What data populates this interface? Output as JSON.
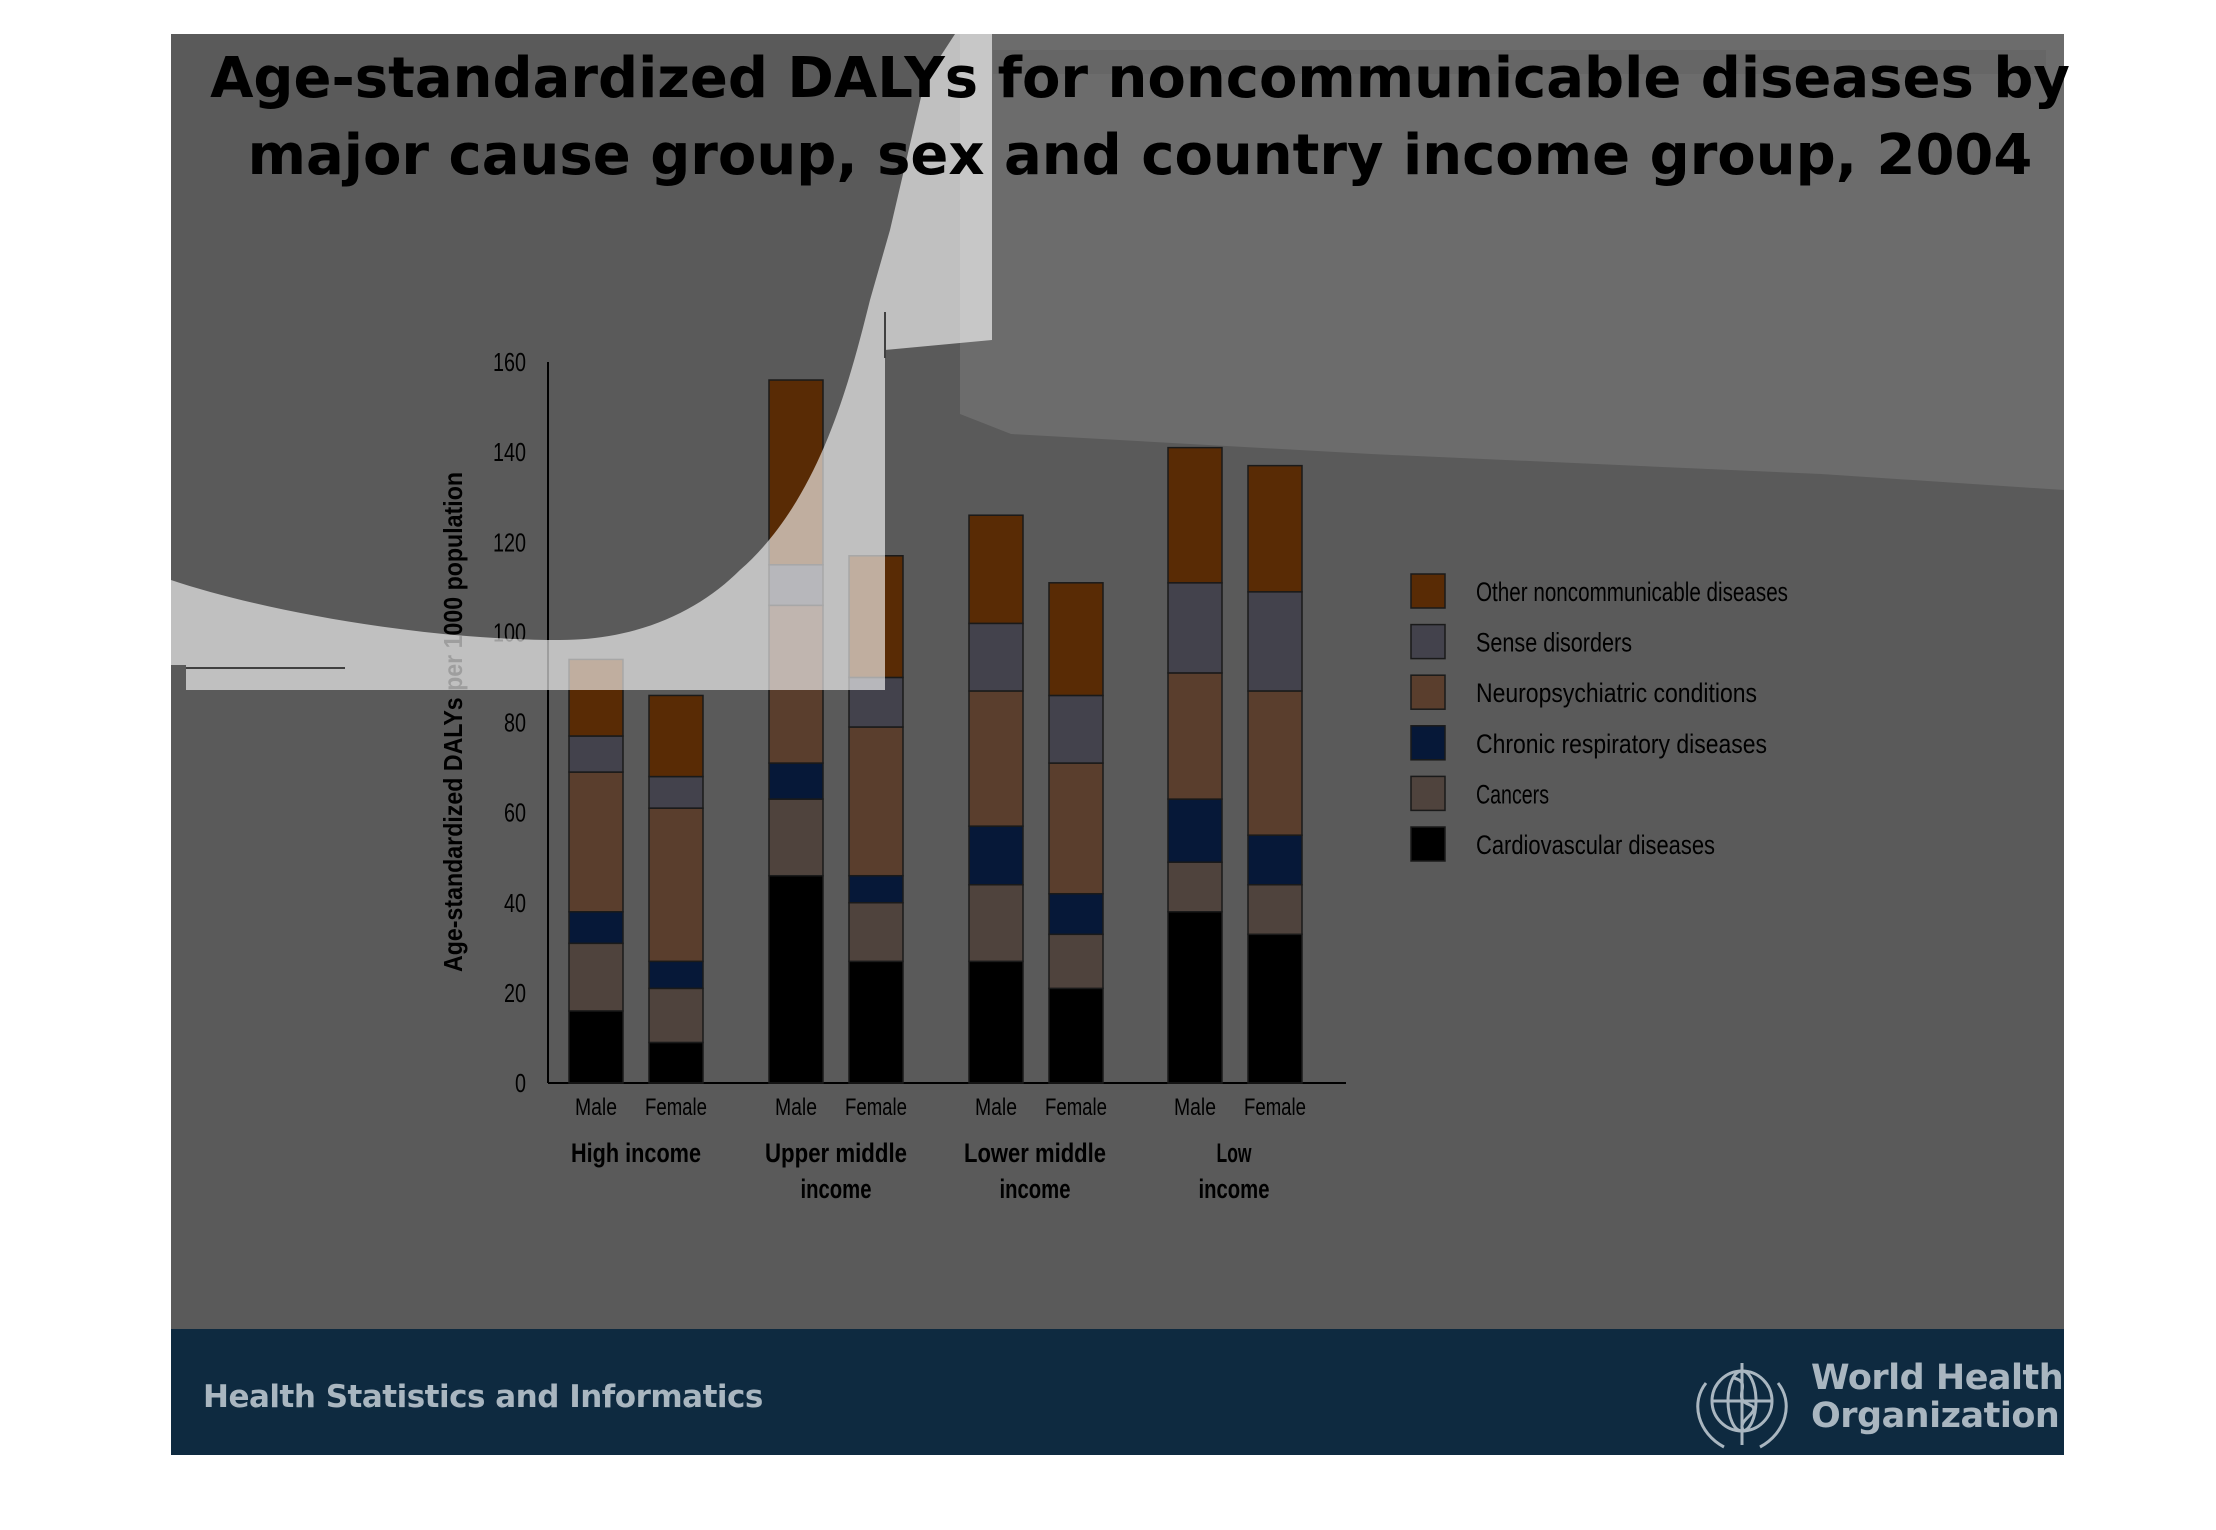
{
  "slide": {
    "title": "Age-standardized DALYs for noncommunicable diseases by major cause group,  sex and country income group, 2004",
    "footer_label": "Health Statistics and Informatics",
    "organization": [
      "World Health",
      "Organization"
    ],
    "logo_icon": "who-emblem-icon",
    "colors": {
      "slide_bg": "#5a5a5a",
      "footer_bg": "#0e2a40",
      "footer_text": "#a9b6c0"
    }
  },
  "chart_data": {
    "type": "bar",
    "stacked": true,
    "ylabel": "Age-standardized DALYs per 1000 population",
    "ylim": [
      0,
      160
    ],
    "yticks": [
      0,
      20,
      40,
      60,
      80,
      100,
      120,
      140,
      160
    ],
    "groups": [
      {
        "label": [
          "High income"
        ],
        "bars": [
          "Male",
          "Female"
        ]
      },
      {
        "label": [
          "Upper middle",
          "income"
        ],
        "bars": [
          "Male",
          "Female"
        ]
      },
      {
        "label": [
          "Lower middle",
          "income"
        ],
        "bars": [
          "Male",
          "Female"
        ]
      },
      {
        "label": [
          "Low",
          "income"
        ],
        "bars": [
          "Male",
          "Female"
        ]
      }
    ],
    "series": [
      {
        "name": "Cardiovascular diseases",
        "color": "#000000",
        "values": [
          16,
          9,
          46,
          27,
          27,
          21,
          38,
          33
        ]
      },
      {
        "name": "Cancers",
        "color": "#4f433d",
        "values": [
          15,
          12,
          17,
          13,
          17,
          12,
          11,
          11
        ]
      },
      {
        "name": "Chronic respiratory diseases",
        "color": "#061838",
        "values": [
          7,
          6,
          8,
          6,
          13,
          9,
          14,
          11
        ]
      },
      {
        "name": "Neuropsychiatric conditions",
        "color": "#5a3e2d",
        "values": [
          31,
          34,
          35,
          33,
          30,
          29,
          28,
          32
        ]
      },
      {
        "name": "Sense disorders",
        "color": "#43424c",
        "values": [
          8,
          7,
          9,
          11,
          15,
          15,
          20,
          22
        ]
      },
      {
        "name": "Other noncommunicable diseases",
        "color": "#592b05",
        "values": [
          17,
          18,
          41,
          27,
          24,
          25,
          30,
          28
        ]
      }
    ],
    "legend_position": "right",
    "grid": false
  }
}
